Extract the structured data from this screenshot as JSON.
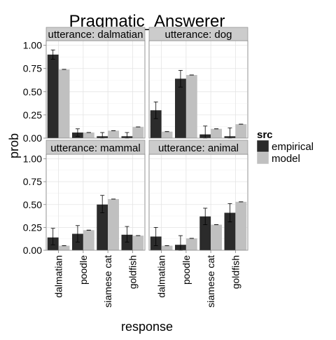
{
  "chart_data": {
    "type": "bar",
    "title": "Pragmatic_Answerer",
    "xlabel": "response",
    "ylabel": "prob",
    "ylim": [
      0,
      1.05
    ],
    "yticks": [
      "0.00",
      "0.25",
      "0.50",
      "0.75",
      "1.00"
    ],
    "ytick_values": [
      0,
      0.25,
      0.5,
      0.75,
      1.0
    ],
    "categories": [
      "dalmatian",
      "poodle",
      "siamese cat",
      "goldfish"
    ],
    "legend": {
      "title": "src",
      "placement": "right",
      "entries": [
        {
          "name": "empirical",
          "color": "#2b2b2b"
        },
        {
          "name": "model",
          "color": "#c0c0c0"
        }
      ]
    },
    "grid": true,
    "facets": [
      {
        "label": "utterance: dalmatian",
        "series": [
          {
            "name": "empirical",
            "values": [
              0.9,
              0.06,
              0.02,
              0.02
            ],
            "err_low": [
              0.85,
              0.02,
              0.0,
              0.0
            ],
            "err_high": [
              0.95,
              0.1,
              0.06,
              0.06
            ]
          },
          {
            "name": "model",
            "values": [
              0.74,
              0.06,
              0.08,
              0.12
            ],
            "err_low": [
              0.74,
              0.06,
              0.08,
              0.12
            ],
            "err_high": [
              0.74,
              0.06,
              0.08,
              0.12
            ]
          }
        ]
      },
      {
        "label": "utterance: dog",
        "series": [
          {
            "name": "empirical",
            "values": [
              0.3,
              0.64,
              0.04,
              0.02
            ],
            "err_low": [
              0.21,
              0.55,
              0.0,
              0.0
            ],
            "err_high": [
              0.39,
              0.73,
              0.13,
              0.11
            ]
          },
          {
            "name": "model",
            "values": [
              0.07,
              0.68,
              0.1,
              0.15
            ],
            "err_low": [
              0.07,
              0.68,
              0.1,
              0.15
            ],
            "err_high": [
              0.07,
              0.68,
              0.1,
              0.15
            ]
          }
        ]
      },
      {
        "label": "utterance: mammal",
        "series": [
          {
            "name": "empirical",
            "values": [
              0.14,
              0.18,
              0.5,
              0.17
            ],
            "err_low": [
              0.06,
              0.09,
              0.41,
              0.09
            ],
            "err_high": [
              0.24,
              0.27,
              0.6,
              0.26
            ]
          },
          {
            "name": "model",
            "values": [
              0.05,
              0.22,
              0.56,
              0.16
            ],
            "err_low": [
              0.05,
              0.22,
              0.56,
              0.16
            ],
            "err_high": [
              0.05,
              0.22,
              0.56,
              0.16
            ]
          }
        ]
      },
      {
        "label": "utterance: animal",
        "series": [
          {
            "name": "empirical",
            "values": [
              0.15,
              0.06,
              0.37,
              0.41
            ],
            "err_low": [
              0.05,
              0.0,
              0.28,
              0.31
            ],
            "err_high": [
              0.25,
              0.16,
              0.46,
              0.51
            ]
          },
          {
            "name": "model",
            "values": [
              0.05,
              0.13,
              0.28,
              0.53
            ],
            "err_low": [
              0.05,
              0.13,
              0.28,
              0.53
            ],
            "err_high": [
              0.05,
              0.13,
              0.28,
              0.53
            ]
          }
        ]
      }
    ]
  }
}
